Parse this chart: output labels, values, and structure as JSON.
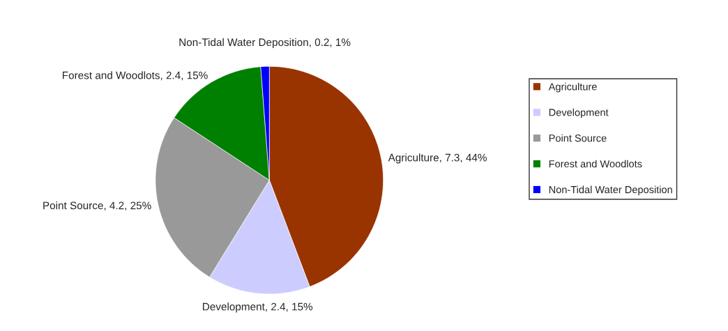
{
  "chart_data": {
    "type": "pie",
    "categories": [
      "Agriculture",
      "Development",
      "Point Source",
      "Forest and Woodlots",
      "Non-Tidal Water Deposition"
    ],
    "values": [
      7.3,
      2.4,
      4.2,
      2.4,
      0.2
    ],
    "value_labels": [
      "Agriculture, 7.3, 44%",
      "Development, 2.4, 15%",
      "Point Source, 4.2, 25%",
      "Forest and Woodlots, 2.4, 15%",
      "Non-Tidal Water Deposition, 0.2, 1%"
    ],
    "colors": [
      "#993300",
      "#ccccff",
      "#999999",
      "#008000",
      "#0000ff"
    ],
    "legend": "right"
  }
}
